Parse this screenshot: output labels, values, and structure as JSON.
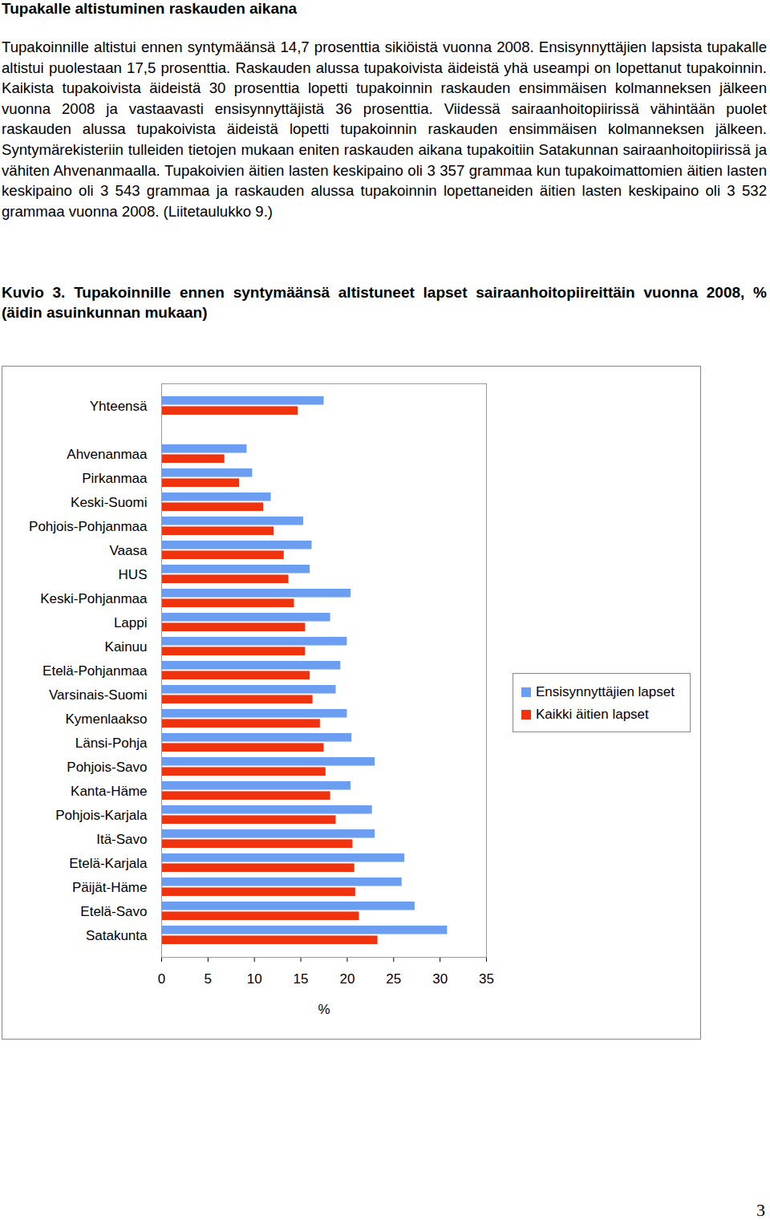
{
  "heading": "Tupakalle altistuminen raskauden aikana",
  "paragraph": "Tupakoinnille altistui ennen syntymäänsä 14,7 prosenttia sikiöistä vuonna 2008. Ensisynnyttäjien lapsista tupakalle altistui puolestaan 17,5 prosenttia. Raskauden alussa tupakoivista äideistä yhä useampi on lopettanut tupakoinnin. Kaikista tupakoivista äideistä 30 prosenttia lopetti tupakoinnin raskauden ensimmäisen kolmanneksen jälkeen vuonna 2008 ja vastaavasti ensisynnyttäjistä 36 prosenttia. Viidessä sairaanhoitopiirissä vähintään puolet raskauden alussa tupakoivista äideistä lopetti tupakoinnin raskauden ensimmäisen kolmanneksen jälkeen. Syntymärekisteriin tulleiden tietojen mukaan eniten raskauden aikana tupakoitiin Satakunnan sairaanhoitopiirissä ja vähiten Ahvenanmaalla. Tupakoivien äitien lasten keskipaino oli 3 357 grammaa kun tupakoimattomien äitien lasten keskipaino oli 3 543 grammaa ja raskauden alussa tupakoinnin lopettaneiden äitien lasten keskipaino oli 3 532 grammaa vuonna 2008. (Liitetaulukko 9.)",
  "caption": "Kuvio 3. Tupakoinnille ennen syntymäänsä altistuneet lapset sairaanhoitopiireittäin vuonna 2008, % (äidin asuinkunnan mukaan)",
  "page_number": "3",
  "chart_data": {
    "type": "bar",
    "orientation": "horizontal",
    "x_label": "%",
    "categories": [
      "Yhteensä",
      null,
      "Ahvenanmaa",
      "Pirkanmaa",
      "Keski-Suomi",
      "Pohjois-Pohjanmaa",
      "Vaasa",
      "HUS",
      "Keski-Pohjanmaa",
      "Lappi",
      "Kainuu",
      "Etelä-Pohjanmaa",
      "Varsinais-Suomi",
      "Kymenlaakso",
      "Länsi-Pohja",
      "Pohjois-Savo",
      "Kanta-Häme",
      "Pohjois-Karjala",
      "Itä-Savo",
      "Etelä-Karjala",
      "Päijät-Häme",
      "Etelä-Savo",
      "Satakunta"
    ],
    "series": [
      {
        "name": "Ensisynnyttäjien lapset",
        "color": "#6b9ef0",
        "values": [
          17.5,
          null,
          9.2,
          9.8,
          11.8,
          15.3,
          16.2,
          16.0,
          20.4,
          18.2,
          20.0,
          19.3,
          18.8,
          20.0,
          20.5,
          23.0,
          20.4,
          22.7,
          23.0,
          26.2,
          25.9,
          27.3,
          30.8
        ]
      },
      {
        "name": "Kaikki äitien lapset",
        "color": "#f0320f",
        "values": [
          14.7,
          null,
          6.8,
          8.4,
          11.0,
          12.1,
          13.2,
          13.7,
          14.3,
          15.5,
          15.5,
          16.0,
          16.3,
          17.1,
          17.5,
          17.7,
          18.2,
          18.8,
          20.6,
          20.8,
          20.9,
          21.3,
          23.3
        ]
      }
    ],
    "xlim": [
      0,
      35
    ],
    "xticks": [
      0,
      5,
      10,
      15,
      20,
      25,
      30,
      35
    ],
    "grid": false,
    "legend": "right"
  }
}
